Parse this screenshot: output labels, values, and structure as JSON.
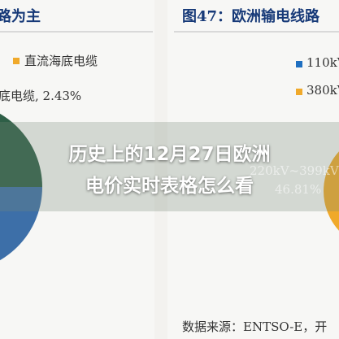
{
  "left_panel": {
    "title": "路为主",
    "legend": [
      {
        "label": "直流海底电缆",
        "color": "#f0a92a"
      }
    ],
    "data_label": "底电缆, 2.43%",
    "slice_colors": [
      "#3d6fa8",
      "#2e5f47"
    ]
  },
  "right_panel": {
    "title": "图47：欧洲输电线路",
    "legend": [
      {
        "label": "110kV",
        "color": "#1f6fc0"
      },
      {
        "label": "380kV",
        "color": "#f0a92a"
      }
    ],
    "ghost_label_1": "220kV~399kV",
    "ghost_label_2": "46.81%",
    "source": "数据来源：ENTSO-E，开"
  },
  "headline": {
    "line1": "历史上的12月27日欧洲",
    "line2": "电价实时表格怎么看"
  },
  "chart_data": [
    {
      "type": "pie",
      "title": "路为主",
      "series": [
        {
          "name": "直流海底电缆",
          "value": 2.43
        }
      ]
    },
    {
      "type": "pie",
      "title": "图47：欧洲输电线路",
      "series": [
        {
          "name": "110kV",
          "value": null
        },
        {
          "name": "380kV",
          "value": null
        },
        {
          "name": "220kV~399kV",
          "value": 46.81
        }
      ]
    }
  ]
}
